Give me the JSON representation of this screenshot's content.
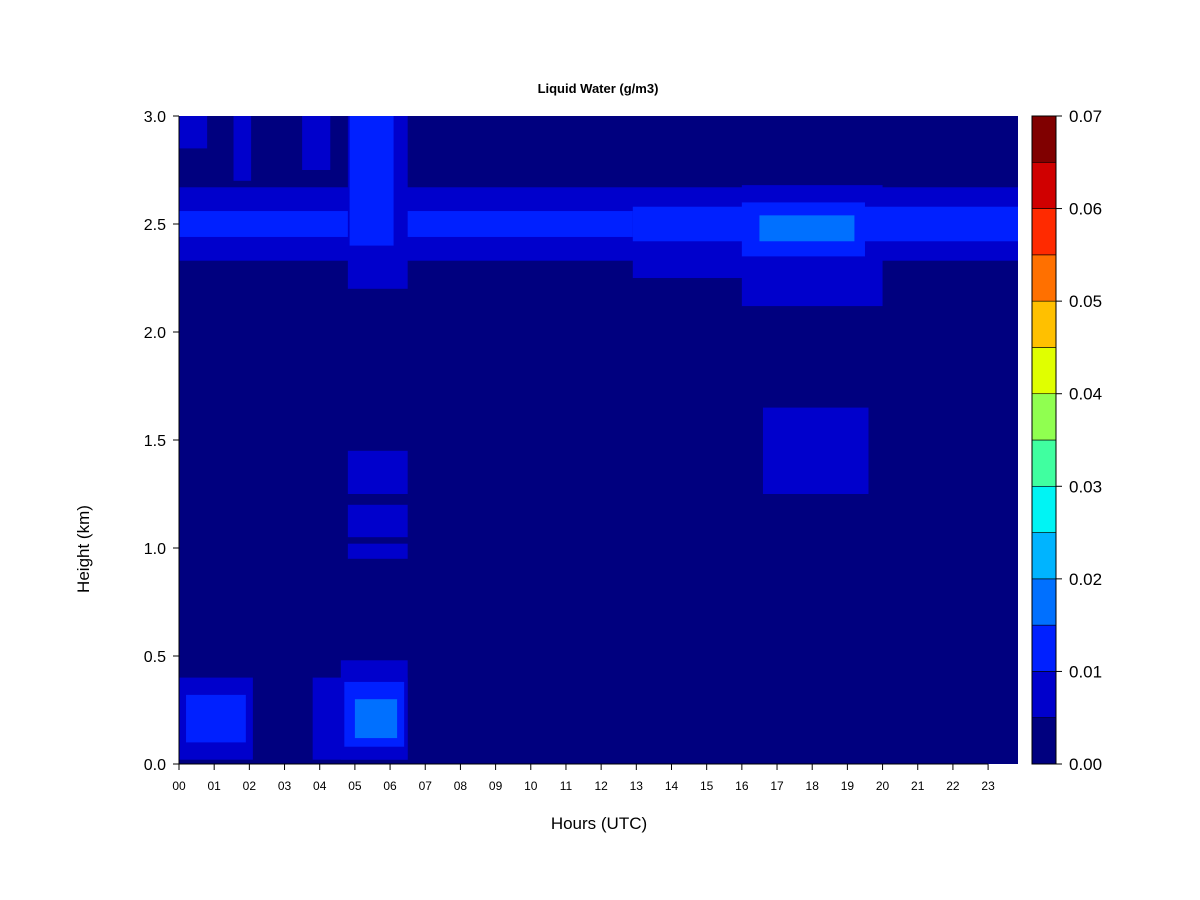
{
  "chart_data": {
    "type": "heatmap",
    "title": "Liquid Water (g/m3)",
    "xlabel": "Hours (UTC)",
    "ylabel": "Height (km)",
    "xlim": [
      0,
      23.85
    ],
    "ylim": [
      0,
      3.0
    ],
    "x_ticks": [
      "00",
      "01",
      "02",
      "03",
      "04",
      "05",
      "06",
      "07",
      "08",
      "09",
      "10",
      "11",
      "12",
      "13",
      "14",
      "15",
      "16",
      "17",
      "18",
      "19",
      "20",
      "21",
      "22",
      "23"
    ],
    "y_ticks": [
      "0.0",
      "0.5",
      "1.0",
      "1.5",
      "2.0",
      "2.5",
      "3.0"
    ],
    "colorbar": {
      "levels": [
        0.0,
        0.005,
        0.01,
        0.015,
        0.02,
        0.025,
        0.03,
        0.035,
        0.04,
        0.045,
        0.05,
        0.055,
        0.06,
        0.065,
        0.07
      ],
      "tick_labels": [
        "0.00",
        "0.01",
        "0.02",
        "0.03",
        "0.04",
        "0.05",
        "0.06",
        "0.07"
      ],
      "colors": [
        "#00007F",
        "#0000CC",
        "#0020FF",
        "#0070FF",
        "#00B4FF",
        "#00F4F4",
        "#40FFA0",
        "#90FF50",
        "#E0FF00",
        "#FFC000",
        "#FF7000",
        "#FF2A00",
        "#D00000",
        "#800000"
      ]
    },
    "regions": [
      {
        "x0": 0.0,
        "x1": 23.85,
        "y0": 0.0,
        "y1": 3.0,
        "level": 0
      },
      {
        "x0": 0.0,
        "x1": 23.85,
        "y0": 2.33,
        "y1": 2.67,
        "level": 1
      },
      {
        "x0": 12.9,
        "x1": 19.5,
        "y0": 2.25,
        "y1": 2.65,
        "level": 1
      },
      {
        "x0": 16.0,
        "x1": 20.0,
        "y0": 2.12,
        "y1": 2.68,
        "level": 1
      },
      {
        "x0": 0.0,
        "x1": 12.9,
        "y0": 2.44,
        "y1": 2.56,
        "level": 2
      },
      {
        "x0": 12.9,
        "x1": 23.85,
        "y0": 2.42,
        "y1": 2.58,
        "level": 2
      },
      {
        "x0": 16.0,
        "x1": 19.5,
        "y0": 2.35,
        "y1": 2.6,
        "level": 2
      },
      {
        "x0": 16.5,
        "x1": 19.2,
        "y0": 2.42,
        "y1": 2.54,
        "level": 3
      },
      {
        "x0": 4.8,
        "x1": 6.5,
        "y0": 2.2,
        "y1": 3.0,
        "level": 1
      },
      {
        "x0": 4.85,
        "x1": 6.1,
        "y0": 2.4,
        "y1": 3.0,
        "level": 2
      },
      {
        "x0": 0.0,
        "x1": 0.8,
        "y0": 2.85,
        "y1": 3.0,
        "level": 1
      },
      {
        "x0": 1.55,
        "x1": 2.05,
        "y0": 2.7,
        "y1": 3.0,
        "level": 1
      },
      {
        "x0": 3.5,
        "x1": 4.3,
        "y0": 2.75,
        "y1": 3.0,
        "level": 1
      },
      {
        "x0": 4.8,
        "x1": 6.5,
        "y0": 1.25,
        "y1": 1.45,
        "level": 1
      },
      {
        "x0": 4.8,
        "x1": 6.5,
        "y0": 1.05,
        "y1": 1.2,
        "level": 1
      },
      {
        "x0": 4.8,
        "x1": 6.5,
        "y0": 0.95,
        "y1": 1.02,
        "level": 1
      },
      {
        "x0": 16.6,
        "x1": 19.6,
        "y0": 1.25,
        "y1": 1.65,
        "level": 1
      },
      {
        "x0": 0.0,
        "x1": 2.1,
        "y0": 0.02,
        "y1": 0.4,
        "level": 1
      },
      {
        "x0": 0.2,
        "x1": 1.9,
        "y0": 0.1,
        "y1": 0.32,
        "level": 2
      },
      {
        "x0": 3.8,
        "x1": 6.5,
        "y0": 0.02,
        "y1": 0.4,
        "level": 1
      },
      {
        "x0": 4.6,
        "x1": 6.5,
        "y0": 0.02,
        "y1": 0.48,
        "level": 1
      },
      {
        "x0": 4.7,
        "x1": 6.4,
        "y0": 0.08,
        "y1": 0.38,
        "level": 2
      },
      {
        "x0": 5.0,
        "x1": 6.2,
        "y0": 0.12,
        "y1": 0.3,
        "level": 3
      }
    ]
  }
}
